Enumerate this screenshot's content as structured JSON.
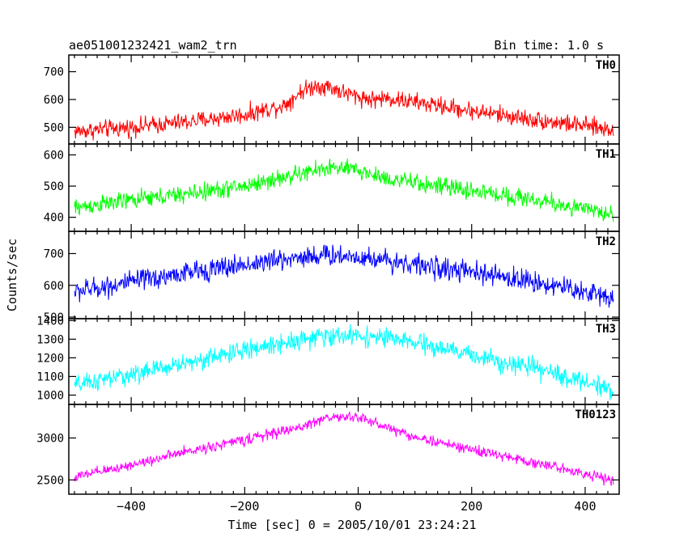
{
  "chart_data": {
    "type": "line",
    "title": "ae051001232421_wam2_trn",
    "bin_time": "Bin time: 1.0 s",
    "xlabel": "Time [sec] 0 = 2005/10/01 23:24:21",
    "ylabel": "Counts/sec",
    "xlim": [
      -510,
      460
    ],
    "x_ticks": [
      -400,
      -200,
      0,
      200,
      400
    ],
    "x_tick_labels": [
      "−400",
      "−200",
      "0",
      "200",
      "400"
    ],
    "series": [
      {
        "name": "TH0",
        "color": "#ff0000",
        "ylim": [
          440,
          760
        ],
        "y_ticks": [
          500,
          600,
          700
        ],
        "y_tick_labels": [
          "500",
          "600",
          "700"
        ],
        "x": [
          -500,
          -400,
          -300,
          -200,
          -130,
          -100,
          -75,
          -50,
          -25,
          0,
          25,
          50,
          100,
          200,
          300,
          400,
          450
        ],
        "y": [
          485,
          500,
          520,
          545,
          580,
          630,
          650,
          645,
          625,
          610,
          600,
          605,
          590,
          560,
          530,
          505,
          490
        ],
        "noise": 28
      },
      {
        "name": "TH1",
        "color": "#00ff00",
        "ylim": [
          355,
          635
        ],
        "y_ticks": [
          400,
          500,
          600
        ],
        "y_tick_labels": [
          "400",
          "500",
          "600"
        ],
        "x": [
          -500,
          -400,
          -300,
          -200,
          -100,
          -50,
          0,
          50,
          100,
          200,
          300,
          400,
          450
        ],
        "y": [
          430,
          455,
          475,
          500,
          540,
          560,
          550,
          525,
          510,
          485,
          460,
          425,
          410
        ],
        "noise": 25
      },
      {
        "name": "TH2",
        "color": "#0000ff",
        "ylim": [
          495,
          770
        ],
        "y_ticks": [
          500,
          600,
          700
        ],
        "y_tick_labels": [
          "500",
          "600",
          "700"
        ],
        "x": [
          -500,
          -400,
          -300,
          -200,
          -100,
          -50,
          0,
          50,
          100,
          200,
          300,
          400,
          450
        ],
        "y": [
          580,
          610,
          640,
          665,
          690,
          695,
          690,
          680,
          665,
          640,
          615,
          580,
          560
        ],
        "noise": 30
      },
      {
        "name": "TH3",
        "color": "#00ffff",
        "ylim": [
          950,
          1410
        ],
        "y_ticks": [
          1000,
          1100,
          1200,
          1300,
          1400
        ],
        "y_tick_labels": [
          "1000",
          "1100",
          "1200",
          "1300",
          "1400"
        ],
        "x": [
          -500,
          -400,
          -300,
          -200,
          -100,
          -50,
          0,
          50,
          100,
          200,
          300,
          400,
          450
        ],
        "y": [
          1050,
          1110,
          1175,
          1240,
          1300,
          1315,
          1320,
          1305,
          1280,
          1215,
          1150,
          1070,
          1030
        ],
        "noise": 45
      },
      {
        "name": "TH0123",
        "color": "#ff00ff",
        "ylim": [
          2330,
          3400
        ],
        "y_ticks": [
          2500,
          3000
        ],
        "y_tick_labels": [
          "2500",
          "3000"
        ],
        "x": [
          -500,
          -400,
          -300,
          -200,
          -100,
          -60,
          0,
          50,
          100,
          200,
          300,
          400,
          450
        ],
        "y": [
          2530,
          2680,
          2840,
          2980,
          3130,
          3240,
          3250,
          3130,
          3010,
          2860,
          2720,
          2580,
          2480
        ],
        "noise": 55
      }
    ]
  }
}
